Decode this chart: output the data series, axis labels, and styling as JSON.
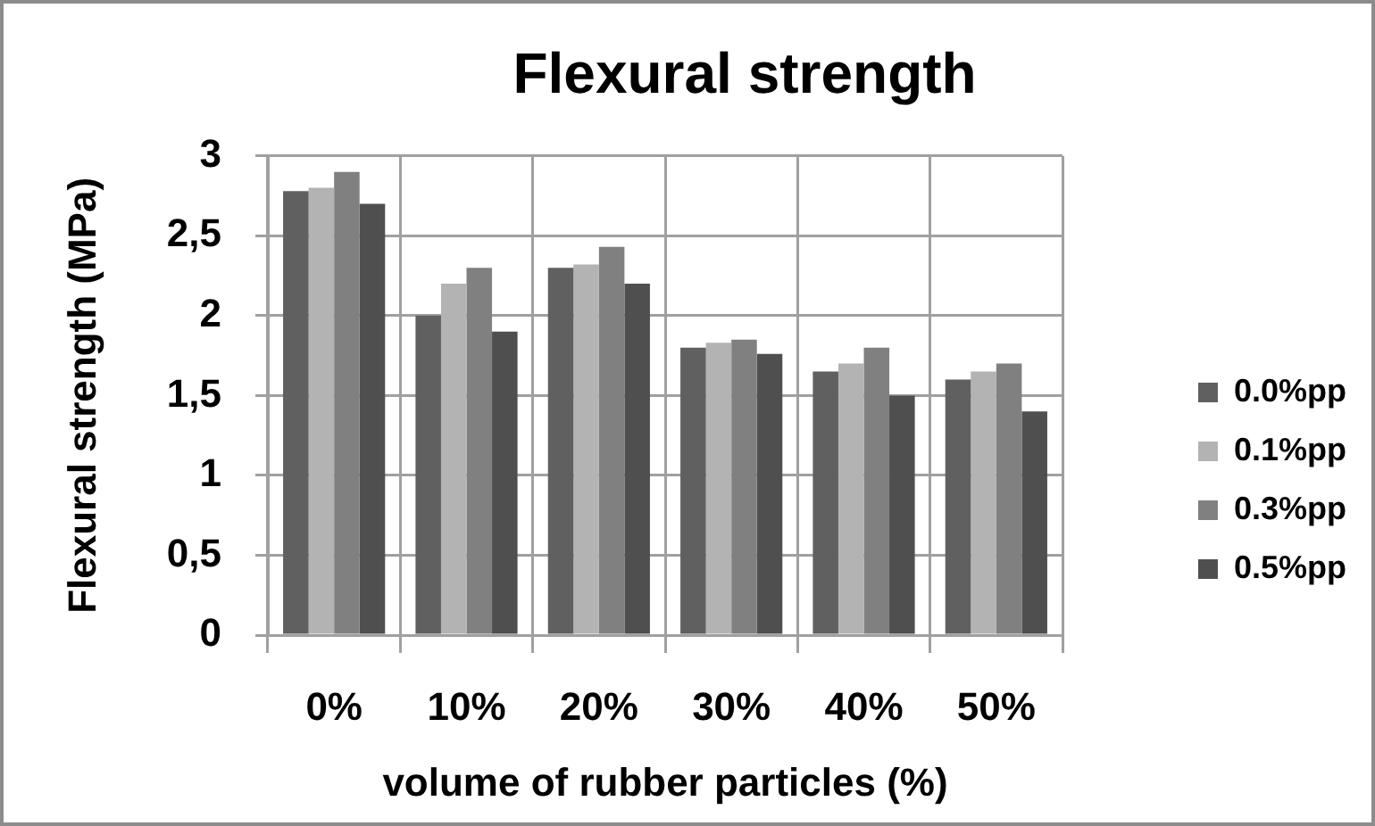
{
  "chart_data": {
    "type": "bar",
    "title": "Flexural strength",
    "xlabel": "volume of rubber particles (%)",
    "ylabel": "Flexural strength (MPa)",
    "categories": [
      "0%",
      "10%",
      "20%",
      "30%",
      "40%",
      "50%"
    ],
    "series": [
      {
        "name": "0.0%pp",
        "color": "#606060",
        "values": [
          2.78,
          2.0,
          2.3,
          1.8,
          1.65,
          1.6
        ]
      },
      {
        "name": "0.1%pp",
        "color": "#b3b3b3",
        "values": [
          2.8,
          2.2,
          2.32,
          1.83,
          1.7,
          1.65
        ]
      },
      {
        "name": "0.3%pp",
        "color": "#808080",
        "values": [
          2.9,
          2.3,
          2.43,
          1.85,
          1.8,
          1.7
        ]
      },
      {
        "name": "0.5%pp",
        "color": "#4f4f4f",
        "values": [
          2.7,
          1.9,
          2.2,
          1.76,
          1.5,
          1.4
        ]
      }
    ],
    "ylim": [
      0,
      3
    ],
    "yticks": [
      0,
      {
        "value": 0.5,
        "label": "0,5"
      },
      1,
      {
        "value": 1.5,
        "label": "1,5"
      },
      2,
      {
        "value": 2.5,
        "label": "2,5"
      },
      3
    ],
    "grid": true,
    "legend": "right"
  }
}
